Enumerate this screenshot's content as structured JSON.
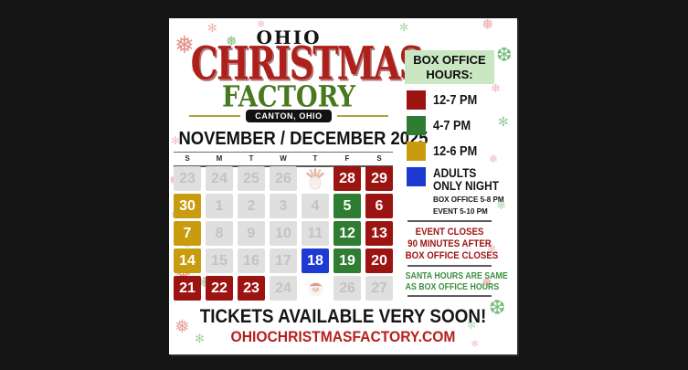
{
  "poster": {
    "logo": {
      "ohio": "OHIO",
      "christmas": "CHRISTMAS",
      "factory": "FACTORY",
      "location": "CANTON, OHIO"
    },
    "calendar": {
      "title": "NOVEMBER / DECEMBER 2025",
      "weekdays": [
        "S",
        "M",
        "T",
        "W",
        "T",
        "F",
        "S"
      ],
      "type_colors": {
        "hours-12-7": "#9c1412",
        "hours-4-7": "#2e7d32",
        "hours-12-6": "#c89c0e",
        "adults-only": "#1d3bd2"
      },
      "days": [
        {
          "label": "23",
          "type": "closed"
        },
        {
          "label": "24",
          "type": "closed"
        },
        {
          "label": "25",
          "type": "closed"
        },
        {
          "label": "26",
          "type": "closed"
        },
        {
          "label": "",
          "type": "thanksgiving",
          "icon": "turkey-icon"
        },
        {
          "label": "28",
          "type": "hours-12-7"
        },
        {
          "label": "29",
          "type": "hours-12-7"
        },
        {
          "label": "30",
          "type": "hours-12-6"
        },
        {
          "label": "1",
          "type": "closed"
        },
        {
          "label": "2",
          "type": "closed"
        },
        {
          "label": "3",
          "type": "closed"
        },
        {
          "label": "4",
          "type": "closed"
        },
        {
          "label": "5",
          "type": "hours-4-7"
        },
        {
          "label": "6",
          "type": "hours-12-7"
        },
        {
          "label": "7",
          "type": "hours-12-6"
        },
        {
          "label": "8",
          "type": "closed"
        },
        {
          "label": "9",
          "type": "closed"
        },
        {
          "label": "10",
          "type": "closed"
        },
        {
          "label": "11",
          "type": "closed"
        },
        {
          "label": "12",
          "type": "hours-4-7"
        },
        {
          "label": "13",
          "type": "hours-12-7"
        },
        {
          "label": "14",
          "type": "hours-12-6"
        },
        {
          "label": "15",
          "type": "closed"
        },
        {
          "label": "16",
          "type": "closed"
        },
        {
          "label": "17",
          "type": "closed"
        },
        {
          "label": "18",
          "type": "adults-only"
        },
        {
          "label": "19",
          "type": "hours-4-7"
        },
        {
          "label": "20",
          "type": "hours-12-7"
        },
        {
          "label": "21",
          "type": "hours-12-7"
        },
        {
          "label": "22",
          "type": "hours-12-7"
        },
        {
          "label": "23",
          "type": "hours-12-7"
        },
        {
          "label": "24",
          "type": "closed"
        },
        {
          "label": "",
          "type": "christmas",
          "icon": "santa-icon"
        },
        {
          "label": "26",
          "type": "closed"
        },
        {
          "label": "27",
          "type": "closed"
        }
      ]
    },
    "box_office": {
      "header": "BOX OFFICE HOURS:",
      "header_bg": "#c9e7c3",
      "items": [
        {
          "name": "hours-12-7",
          "color": "#9c1412",
          "label": "12-7 PM"
        },
        {
          "name": "hours-4-7",
          "color": "#2e7d32",
          "label": "4-7 PM"
        },
        {
          "name": "hours-12-6",
          "color": "#c89c0e",
          "label": "12-6 PM"
        }
      ],
      "adults": {
        "name": "adults-only",
        "color": "#1d3bd2",
        "title_line1": "ADULTS",
        "title_line2": "ONLY NIGHT",
        "sub1": "BOX OFFICE 5-8 PM",
        "sub2": "EVENT 5-10 PM"
      },
      "notes": [
        {
          "name": "event-closes-note",
          "color": "#9c1412",
          "lines": [
            "EVENT CLOSES",
            "90 MINUTES AFTER",
            "BOX OFFICE CLOSES"
          ]
        },
        {
          "name": "santa-hours-note",
          "color": "#3a8f3d",
          "lines": [
            "SANTA HOURS ARE SAME",
            "AS BOX OFFICE HOURS"
          ]
        }
      ]
    },
    "footer": {
      "tickets": "TICKETS AVAILABLE VERY SOON!",
      "website": "OHIOCHRISTMASFACTORY.COM"
    },
    "decor": {
      "snowflake_red": "#dd6b65",
      "snowflake_green": "#58ab58"
    }
  }
}
